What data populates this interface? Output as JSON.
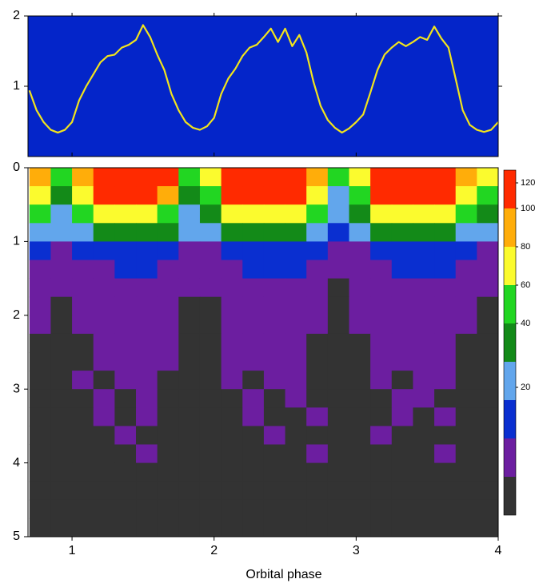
{
  "chart_data": [
    {
      "type": "line",
      "color": "#f2e41c",
      "background": "#0425c9",
      "x": [
        0.7,
        0.75,
        0.8,
        0.85,
        0.9,
        0.95,
        1.0,
        1.05,
        1.1,
        1.15,
        1.2,
        1.25,
        1.3,
        1.35,
        1.4,
        1.45,
        1.5,
        1.55,
        1.6,
        1.65,
        1.7,
        1.75,
        1.8,
        1.85,
        1.9,
        1.95,
        2.0,
        2.05,
        2.1,
        2.15,
        2.2,
        2.25,
        2.3,
        2.35,
        2.4,
        2.45,
        2.5,
        2.55,
        2.6,
        2.65,
        2.7,
        2.75,
        2.8,
        2.85,
        2.9,
        2.95,
        3.0,
        3.05,
        3.1,
        3.15,
        3.2,
        3.25,
        3.3,
        3.35,
        3.4,
        3.45,
        3.5,
        3.55,
        3.6,
        3.65,
        3.7,
        3.75,
        3.8,
        3.85,
        3.9,
        3.95,
        4.0
      ],
      "values": [
        0.94,
        0.66,
        0.49,
        0.38,
        0.34,
        0.38,
        0.49,
        0.8,
        1.0,
        1.17,
        1.34,
        1.43,
        1.45,
        1.55,
        1.59,
        1.66,
        1.87,
        1.7,
        1.45,
        1.23,
        0.89,
        0.66,
        0.49,
        0.41,
        0.38,
        0.43,
        0.55,
        0.89,
        1.11,
        1.25,
        1.43,
        1.55,
        1.59,
        1.7,
        1.82,
        1.63,
        1.82,
        1.57,
        1.73,
        1.48,
        1.06,
        0.72,
        0.52,
        0.41,
        0.34,
        0.4,
        0.49,
        0.6,
        0.91,
        1.23,
        1.45,
        1.55,
        1.63,
        1.57,
        1.63,
        1.7,
        1.66,
        1.85,
        1.68,
        1.55,
        1.11,
        0.66,
        0.45,
        0.38,
        0.35,
        0.38,
        0.49
      ],
      "xlim": [
        0.69,
        4.0
      ],
      "ylim": [
        0,
        2
      ],
      "yticks": [
        1,
        2
      ]
    },
    {
      "type": "heatmap",
      "xlabel": "Orbital phase",
      "x": [
        0.775,
        0.925,
        1.075,
        1.225,
        1.375,
        1.525,
        1.675,
        1.825,
        1.975,
        2.125,
        2.275,
        2.425,
        2.575,
        2.725,
        2.875,
        3.025,
        3.175,
        3.325,
        3.475,
        3.625,
        3.775,
        3.925
      ],
      "y": [
        0.125,
        0.375,
        0.625,
        0.875,
        1.125,
        1.375,
        1.625,
        1.875,
        2.125,
        2.375,
        2.625,
        2.875,
        3.125,
        3.375,
        3.625,
        3.875,
        4.125,
        4.375,
        4.625,
        4.875
      ],
      "z": [
        [
          80,
          56,
          88,
          112,
          120,
          120,
          104,
          56,
          64,
          112,
          120,
          120,
          120,
          88,
          48,
          72,
          112,
          120,
          120,
          120,
          88,
          64
        ],
        [
          65,
          38,
          74,
          101,
          110,
          110,
          92,
          38,
          47,
          101,
          110,
          110,
          110,
          74,
          29,
          56,
          101,
          110,
          110,
          110,
          74,
          47
        ],
        [
          42,
          26,
          48,
          64,
          70,
          70,
          59,
          26,
          31,
          64,
          70,
          70,
          70,
          48,
          20,
          37,
          64,
          70,
          70,
          70,
          48,
          31
        ],
        [
          22,
          15,
          25,
          32,
          35,
          35,
          30,
          15,
          17,
          32,
          35,
          35,
          35,
          25,
          12,
          20,
          32,
          35,
          35,
          35,
          25,
          17
        ],
        [
          10,
          8,
          11,
          13,
          14,
          14,
          12,
          8,
          8,
          13,
          14,
          14,
          14,
          11,
          7,
          9,
          13,
          14,
          14,
          14,
          11,
          8
        ],
        [
          8,
          6,
          8,
          9,
          10,
          10,
          9,
          6,
          7,
          9,
          10,
          10,
          10,
          8,
          5,
          7,
          9,
          10,
          10,
          10,
          8,
          7
        ],
        [
          6,
          5,
          7,
          8,
          9,
          9,
          8,
          5,
          5,
          8,
          9,
          9,
          9,
          7,
          4,
          6,
          8,
          9,
          9,
          9,
          7,
          5
        ],
        [
          6,
          4,
          6,
          7,
          8,
          8,
          7,
          4,
          4,
          7,
          8,
          8,
          8,
          6,
          3,
          5,
          7,
          8,
          8,
          8,
          6,
          4
        ],
        [
          5,
          4,
          5,
          6,
          7,
          7,
          6,
          4,
          4,
          6,
          7,
          7,
          7,
          5,
          3,
          5,
          6,
          7,
          7,
          7,
          5,
          4
        ],
        [
          4,
          3,
          4,
          6,
          6,
          6,
          5,
          3,
          3,
          6,
          6,
          6,
          6,
          4,
          2,
          4,
          6,
          6,
          6,
          6,
          4,
          3
        ],
        [
          4,
          2,
          4,
          5,
          6,
          6,
          5,
          2,
          3,
          5,
          6,
          6,
          6,
          4,
          2,
          3,
          5,
          6,
          6,
          6,
          4,
          3
        ],
        [
          3,
          2,
          5,
          4,
          6,
          5,
          4,
          2,
          3,
          5,
          4,
          6,
          5,
          3,
          2,
          3,
          5,
          4,
          6,
          5,
          3,
          2
        ],
        [
          2,
          3,
          4,
          5,
          4,
          6,
          3,
          2,
          2,
          4,
          5,
          3,
          6,
          2,
          2,
          3,
          4,
          6,
          5,
          4,
          3,
          2
        ],
        [
          3,
          2,
          3,
          5,
          3,
          5,
          2,
          3,
          2,
          3,
          6,
          4,
          3,
          5,
          2,
          2,
          3,
          5,
          4,
          6,
          2,
          3
        ],
        [
          2,
          2,
          4,
          3,
          5,
          2,
          3,
          2,
          3,
          2,
          4,
          5,
          3,
          2,
          3,
          2,
          5,
          3,
          4,
          2,
          3,
          2
        ],
        [
          2,
          3,
          2,
          4,
          2,
          5,
          2,
          2,
          2,
          3,
          2,
          4,
          2,
          5,
          2,
          3,
          2,
          4,
          2,
          5,
          2,
          2
        ],
        [
          3,
          2,
          2,
          3,
          4,
          2,
          3,
          2,
          2,
          4,
          2,
          3,
          2,
          2,
          2,
          2,
          4,
          2,
          3,
          2,
          2,
          3
        ],
        [
          2,
          2,
          3,
          2,
          2,
          4,
          2,
          2,
          3,
          2,
          2,
          2,
          4,
          2,
          2,
          2,
          2,
          3,
          2,
          2,
          4,
          2
        ],
        [
          2,
          3,
          2,
          2,
          3,
          2,
          2,
          2,
          2,
          2,
          3,
          2,
          2,
          2,
          3,
          2,
          2,
          2,
          2,
          3,
          2,
          2
        ],
        [
          2,
          2,
          2,
          3,
          2,
          2,
          2,
          2,
          2,
          2,
          2,
          3,
          2,
          2,
          2,
          2,
          3,
          2,
          2,
          2,
          2,
          2
        ]
      ],
      "xlim": [
        0.69,
        4.0
      ],
      "ylim": [
        5,
        0
      ],
      "xticks": [
        1,
        2,
        3,
        4
      ],
      "yticks": [
        0,
        1,
        2,
        3,
        4,
        5
      ],
      "colorbar": {
        "levels": [
          0,
          5,
          10,
          15,
          30,
          40,
          60,
          80,
          100,
          130
        ],
        "colors": [
          "#333333",
          "#6c1ea0",
          "#0a2fd0",
          "#62a6ec",
          "#138a18",
          "#22d622",
          "#fbfb2e",
          "#ffad0a",
          "#ff2a00"
        ],
        "ticks": [
          20,
          40,
          60,
          80,
          100,
          120
        ]
      }
    }
  ]
}
